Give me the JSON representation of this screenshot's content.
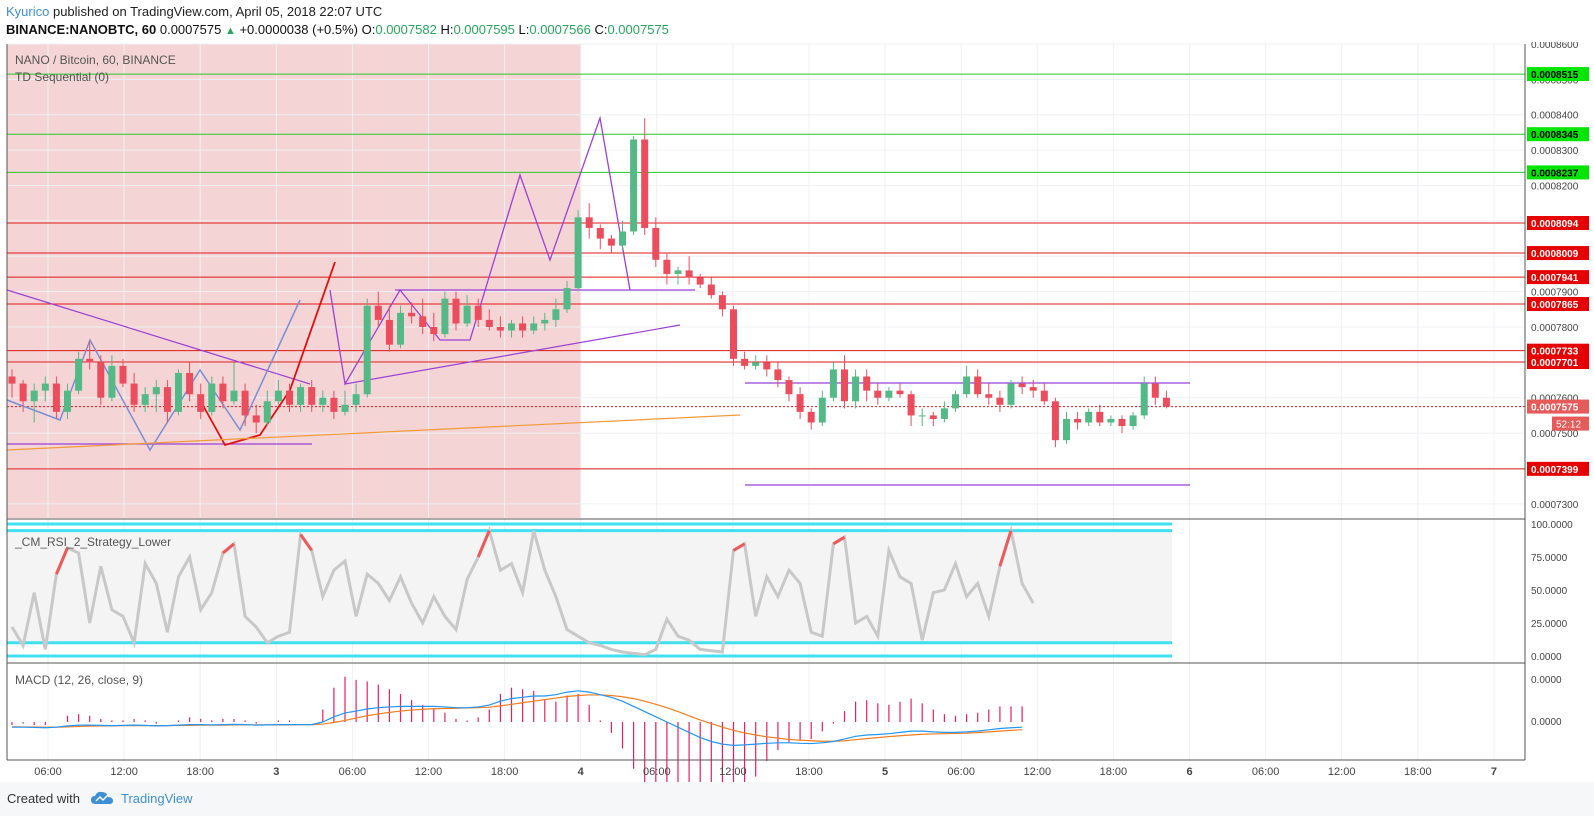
{
  "header": {
    "author": "Kyurico",
    "published_text": " published on TradingView.com, April 05, 2018 22:07 UTC",
    "symbol_line": "BINANCE:NANOBTC, 60",
    "last_price": "0.0007575",
    "change": "+0.0000038 (+0.5%)",
    "o_label": "O:",
    "o_value": "0.0007582",
    "h_label": "H:",
    "h_value": "0.0007595",
    "l_label": "L:",
    "l_value": "0.0007566",
    "c_label": "C:",
    "c_value": "0.0007575"
  },
  "footer": {
    "created_with": "Created with",
    "brand": "TradingView"
  },
  "chart_data": {
    "type": "candlestick",
    "title": "NANO / Bitcoin, 60, BINANCE",
    "indicator": "TD Sequential (0)",
    "ylim": [
      0.000726,
      0.00086
    ],
    "y_ticks": [
      "0.0008600",
      "0.0008500",
      "0.0008400",
      "0.0008300",
      "0.0008200",
      "0.0008100",
      "0.0008000",
      "0.0007900",
      "0.0007800",
      "0.0007700",
      "0.0007600",
      "0.0007500",
      "0.0007400",
      "0.0007300"
    ],
    "x_ticks": [
      "06:00",
      "12:00",
      "18:00",
      "3",
      "06:00",
      "12:00",
      "18:00",
      "4",
      "06:00",
      "12:00",
      "18:00",
      "5",
      "06:00",
      "12:00",
      "18:00",
      "6",
      "06:00",
      "12:00",
      "18:00",
      "7"
    ],
    "levels_green": [
      "0.0008515",
      "0.0008345",
      "0.0008237"
    ],
    "levels_red": [
      "0.0008094",
      "0.0008009",
      "0.0007941",
      "0.0007865",
      "0.0007733",
      "0.0007701",
      "0.0007399"
    ],
    "current_price": "0.0007575",
    "countdown": "52:12",
    "candles": [
      [
        0.000766,
        0.000768,
        0.00076,
        0.000764
      ],
      [
        0.000764,
        0.000765,
        0.000756,
        0.000759
      ],
      [
        0.000759,
        0.000764,
        0.000753,
        0.000762
      ],
      [
        0.000762,
        0.000766,
        0.000759,
        0.000764
      ],
      [
        0.000764,
        0.000766,
        0.000754,
        0.000756
      ],
      [
        0.000756,
        0.000764,
        0.000754,
        0.000762
      ],
      [
        0.000762,
        0.000773,
        0.000761,
        0.000771
      ],
      [
        0.000771,
        0.000776,
        0.000768,
        0.00077
      ],
      [
        0.00077,
        0.000772,
        0.000758,
        0.00076
      ],
      [
        0.00076,
        0.000772,
        0.000759,
        0.000769
      ],
      [
        0.000769,
        0.000771,
        0.000763,
        0.000764
      ],
      [
        0.000764,
        0.000767,
        0.000756,
        0.000758
      ],
      [
        0.000758,
        0.000763,
        0.000756,
        0.000761
      ],
      [
        0.000761,
        0.000765,
        0.000756,
        0.000763
      ],
      [
        0.000763,
        0.000765,
        0.000753,
        0.000756
      ],
      [
        0.000756,
        0.000768,
        0.000755,
        0.000767
      ],
      [
        0.000767,
        0.00077,
        0.000759,
        0.000761
      ],
      [
        0.000761,
        0.000764,
        0.000754,
        0.000756
      ],
      [
        0.000756,
        0.000766,
        0.000755,
        0.000764
      ],
      [
        0.000764,
        0.000766,
        0.000757,
        0.000759
      ],
      [
        0.000759,
        0.00077,
        0.000758,
        0.000762
      ],
      [
        0.000762,
        0.000764,
        0.000752,
        0.000755
      ],
      [
        0.000755,
        0.000758,
        0.00075,
        0.000753
      ],
      [
        0.000753,
        0.000762,
        0.000752,
        0.000759
      ],
      [
        0.000759,
        0.000765,
        0.000758,
        0.000762
      ],
      [
        0.000762,
        0.000764,
        0.000756,
        0.000758
      ],
      [
        0.000758,
        0.000764,
        0.000756,
        0.000763
      ],
      [
        0.000763,
        0.000765,
        0.000756,
        0.000758
      ],
      [
        0.000758,
        0.000762,
        0.000756,
        0.00076
      ],
      [
        0.00076,
        0.000762,
        0.000754,
        0.000756
      ],
      [
        0.000756,
        0.000762,
        0.000755,
        0.000758
      ],
      [
        0.000758,
        0.000764,
        0.000756,
        0.000761
      ],
      [
        0.000761,
        0.000788,
        0.00076,
        0.000786
      ],
      [
        0.000786,
        0.00079,
        0.00078,
        0.000782
      ],
      [
        0.000782,
        0.000786,
        0.000773,
        0.000775
      ],
      [
        0.000775,
        0.000786,
        0.000774,
        0.000784
      ],
      [
        0.000784,
        0.000787,
        0.000781,
        0.000783
      ],
      [
        0.000783,
        0.000788,
        0.000778,
        0.00078
      ],
      [
        0.00078,
        0.000784,
        0.000776,
        0.000778
      ],
      [
        0.000778,
        0.00079,
        0.000777,
        0.000788
      ],
      [
        0.000788,
        0.00079,
        0.000779,
        0.000781
      ],
      [
        0.000781,
        0.000789,
        0.00078,
        0.000786
      ],
      [
        0.000786,
        0.000788,
        0.00078,
        0.000782
      ],
      [
        0.000782,
        0.000785,
        0.000779,
        0.00078
      ],
      [
        0.00078,
        0.000783,
        0.000777,
        0.000779
      ],
      [
        0.000779,
        0.000782,
        0.000777,
        0.000781
      ],
      [
        0.000781,
        0.000783,
        0.000777,
        0.000779
      ],
      [
        0.000779,
        0.000783,
        0.000778,
        0.000781
      ],
      [
        0.000781,
        0.000784,
        0.000779,
        0.000782
      ],
      [
        0.000782,
        0.000788,
        0.00078,
        0.000785
      ],
      [
        0.000785,
        0.000793,
        0.000784,
        0.000791
      ],
      [
        0.000791,
        0.000813,
        0.00079,
        0.000811
      ],
      [
        0.000811,
        0.000815,
        0.000805,
        0.000808
      ],
      [
        0.000808,
        0.000809,
        0.000802,
        0.000805
      ],
      [
        0.000805,
        0.000806,
        0.000801,
        0.000803
      ],
      [
        0.000803,
        0.00081,
        0.000802,
        0.000807
      ],
      [
        0.000807,
        0.000834,
        0.000806,
        0.000833
      ],
      [
        0.000833,
        0.000839,
        0.000806,
        0.000808
      ],
      [
        0.000808,
        0.000811,
        0.000797,
        0.000799
      ],
      [
        0.000799,
        0.000801,
        0.000792,
        0.000795
      ],
      [
        0.000795,
        0.000797,
        0.000792,
        0.000796
      ],
      [
        0.000796,
        0.0008,
        0.000792,
        0.000794
      ],
      [
        0.000794,
        0.000795,
        0.000791,
        0.000792
      ],
      [
        0.000792,
        0.000794,
        0.000788,
        0.000789
      ],
      [
        0.000789,
        0.00079,
        0.000783,
        0.000785
      ],
      [
        0.000785,
        0.000786,
        0.000769,
        0.000771
      ],
      [
        0.000771,
        0.000773,
        0.000768,
        0.000769
      ],
      [
        0.000769,
        0.000772,
        0.000768,
        0.00077
      ],
      [
        0.00077,
        0.000772,
        0.000766,
        0.000768
      ],
      [
        0.000768,
        0.00077,
        0.000763,
        0.000765
      ],
      [
        0.000765,
        0.000766,
        0.000759,
        0.000761
      ],
      [
        0.000761,
        0.000763,
        0.000754,
        0.000756
      ],
      [
        0.000756,
        0.000757,
        0.000751,
        0.000753
      ],
      [
        0.000753,
        0.000762,
        0.000752,
        0.00076
      ],
      [
        0.00076,
        0.00077,
        0.000759,
        0.000768
      ],
      [
        0.000768,
        0.000772,
        0.000757,
        0.000759
      ],
      [
        0.000759,
        0.000768,
        0.000757,
        0.000766
      ],
      [
        0.000766,
        0.000768,
        0.000759,
        0.000762
      ],
      [
        0.000762,
        0.000764,
        0.000758,
        0.00076
      ],
      [
        0.00076,
        0.000763,
        0.000759,
        0.000762
      ],
      [
        0.000762,
        0.000764,
        0.00076,
        0.000761
      ],
      [
        0.000761,
        0.000762,
        0.000752,
        0.000755
      ],
      [
        0.000755,
        0.000757,
        0.000752,
        0.000755
      ],
      [
        0.000755,
        0.000756,
        0.000752,
        0.000754
      ],
      [
        0.000754,
        0.000759,
        0.000753,
        0.000757
      ],
      [
        0.000757,
        0.000762,
        0.000756,
        0.000761
      ],
      [
        0.000761,
        0.000769,
        0.00076,
        0.000766
      ],
      [
        0.000766,
        0.000768,
        0.00076,
        0.000761
      ],
      [
        0.000761,
        0.000764,
        0.000758,
        0.00076
      ],
      [
        0.00076,
        0.000762,
        0.000756,
        0.000758
      ],
      [
        0.000758,
        0.000765,
        0.000757,
        0.000764
      ],
      [
        0.000764,
        0.000766,
        0.000761,
        0.000763
      ],
      [
        0.000763,
        0.000765,
        0.00076,
        0.000762
      ],
      [
        0.000762,
        0.000764,
        0.000758,
        0.000759
      ],
      [
        0.000759,
        0.00076,
        0.000746,
        0.000748
      ],
      [
        0.000748,
        0.000756,
        0.000747,
        0.000754
      ],
      [
        0.000754,
        0.000756,
        0.000751,
        0.000753
      ],
      [
        0.000753,
        0.000757,
        0.000752,
        0.000756
      ],
      [
        0.000756,
        0.000758,
        0.000752,
        0.000753
      ],
      [
        0.000753,
        0.000755,
        0.000752,
        0.000754
      ],
      [
        0.000754,
        0.000755,
        0.00075,
        0.000752
      ],
      [
        0.000752,
        0.000756,
        0.000751,
        0.000755
      ],
      [
        0.000755,
        0.000766,
        0.000754,
        0.000764
      ],
      [
        0.000764,
        0.000766,
        0.000758,
        0.00076
      ],
      [
        0.00076,
        0.000762,
        0.000757,
        0.0007575
      ]
    ],
    "rsi": {
      "name": "_CM_RSI_2_Strategy_Lower",
      "y_ticks": [
        "100.0000",
        "75.0000",
        "50.0000",
        "25.0000",
        "0.0000"
      ],
      "upper": 95,
      "lower": 10,
      "values": [
        22,
        8,
        48,
        5,
        62,
        82,
        78,
        25,
        68,
        35,
        30,
        10,
        70,
        55,
        18,
        60,
        75,
        35,
        48,
        78,
        85,
        30,
        22,
        10,
        15,
        18,
        92,
        80,
        45,
        65,
        72,
        30,
        62,
        55,
        42,
        60,
        40,
        25,
        45,
        30,
        20,
        58,
        75,
        95,
        65,
        70,
        48,
        95,
        65,
        45,
        20,
        15,
        10,
        8,
        5,
        3,
        2,
        1,
        5,
        28,
        15,
        12,
        5,
        4,
        3,
        80,
        85,
        30,
        60,
        45,
        65,
        55,
        18,
        15,
        85,
        90,
        25,
        30,
        15,
        80,
        60,
        55,
        12,
        48,
        50,
        70,
        45,
        55,
        30,
        68,
        95,
        55,
        40
      ]
    },
    "macd": {
      "name": "MACD (12, 26, close, 9)",
      "y_ticks": [
        "0.0000",
        "0.0000"
      ],
      "macd": [
        -0.2,
        -0.2,
        -0.21,
        -0.22,
        -0.2,
        -0.15,
        -0.12,
        -0.12,
        -0.13,
        -0.14,
        -0.13,
        -0.12,
        -0.13,
        -0.15,
        -0.14,
        -0.12,
        -0.1,
        -0.1,
        -0.11,
        -0.1,
        -0.09,
        -0.1,
        -0.12,
        -0.11,
        -0.1,
        -0.1,
        -0.1,
        -0.1,
        0.0,
        0.2,
        0.35,
        0.42,
        0.5,
        0.55,
        0.58,
        0.6,
        0.6,
        0.6,
        0.6,
        0.58,
        0.55,
        0.55,
        0.58,
        0.65,
        0.8,
        0.9,
        0.95,
        1.0,
        1.0,
        1.05,
        1.15,
        1.2,
        1.15,
        1.05,
        0.95,
        0.8,
        0.6,
        0.4,
        0.2,
        0.0,
        -0.2,
        -0.4,
        -0.6,
        -0.75,
        -0.85,
        -0.9,
        -0.88,
        -0.85,
        -0.82,
        -0.8,
        -0.8,
        -0.82,
        -0.83,
        -0.8,
        -0.75,
        -0.65,
        -0.55,
        -0.5,
        -0.48,
        -0.45,
        -0.4,
        -0.35,
        -0.35,
        -0.38,
        -0.4,
        -0.4,
        -0.38,
        -0.35,
        -0.3,
        -0.25,
        -0.22,
        -0.2
      ],
      "signal": [
        -0.18,
        -0.19,
        -0.19,
        -0.2,
        -0.2,
        -0.19,
        -0.17,
        -0.16,
        -0.15,
        -0.15,
        -0.14,
        -0.14,
        -0.14,
        -0.14,
        -0.14,
        -0.13,
        -0.13,
        -0.12,
        -0.12,
        -0.12,
        -0.11,
        -0.11,
        -0.11,
        -0.11,
        -0.11,
        -0.11,
        -0.1,
        -0.1,
        -0.08,
        -0.02,
        0.06,
        0.15,
        0.24,
        0.31,
        0.37,
        0.42,
        0.46,
        0.49,
        0.51,
        0.52,
        0.53,
        0.54,
        0.55,
        0.57,
        0.62,
        0.68,
        0.74,
        0.8,
        0.86,
        0.92,
        0.98,
        1.02,
        1.04,
        1.04,
        1.02,
        0.97,
        0.9,
        0.8,
        0.68,
        0.55,
        0.4,
        0.24,
        0.08,
        -0.06,
        -0.2,
        -0.32,
        -0.42,
        -0.5,
        -0.57,
        -0.62,
        -0.67,
        -0.7,
        -0.72,
        -0.74,
        -0.74,
        -0.72,
        -0.68,
        -0.64,
        -0.6,
        -0.56,
        -0.53,
        -0.5,
        -0.47,
        -0.46,
        -0.45,
        -0.44,
        -0.43,
        -0.41,
        -0.38,
        -0.35,
        -0.32,
        -0.3
      ]
    }
  }
}
